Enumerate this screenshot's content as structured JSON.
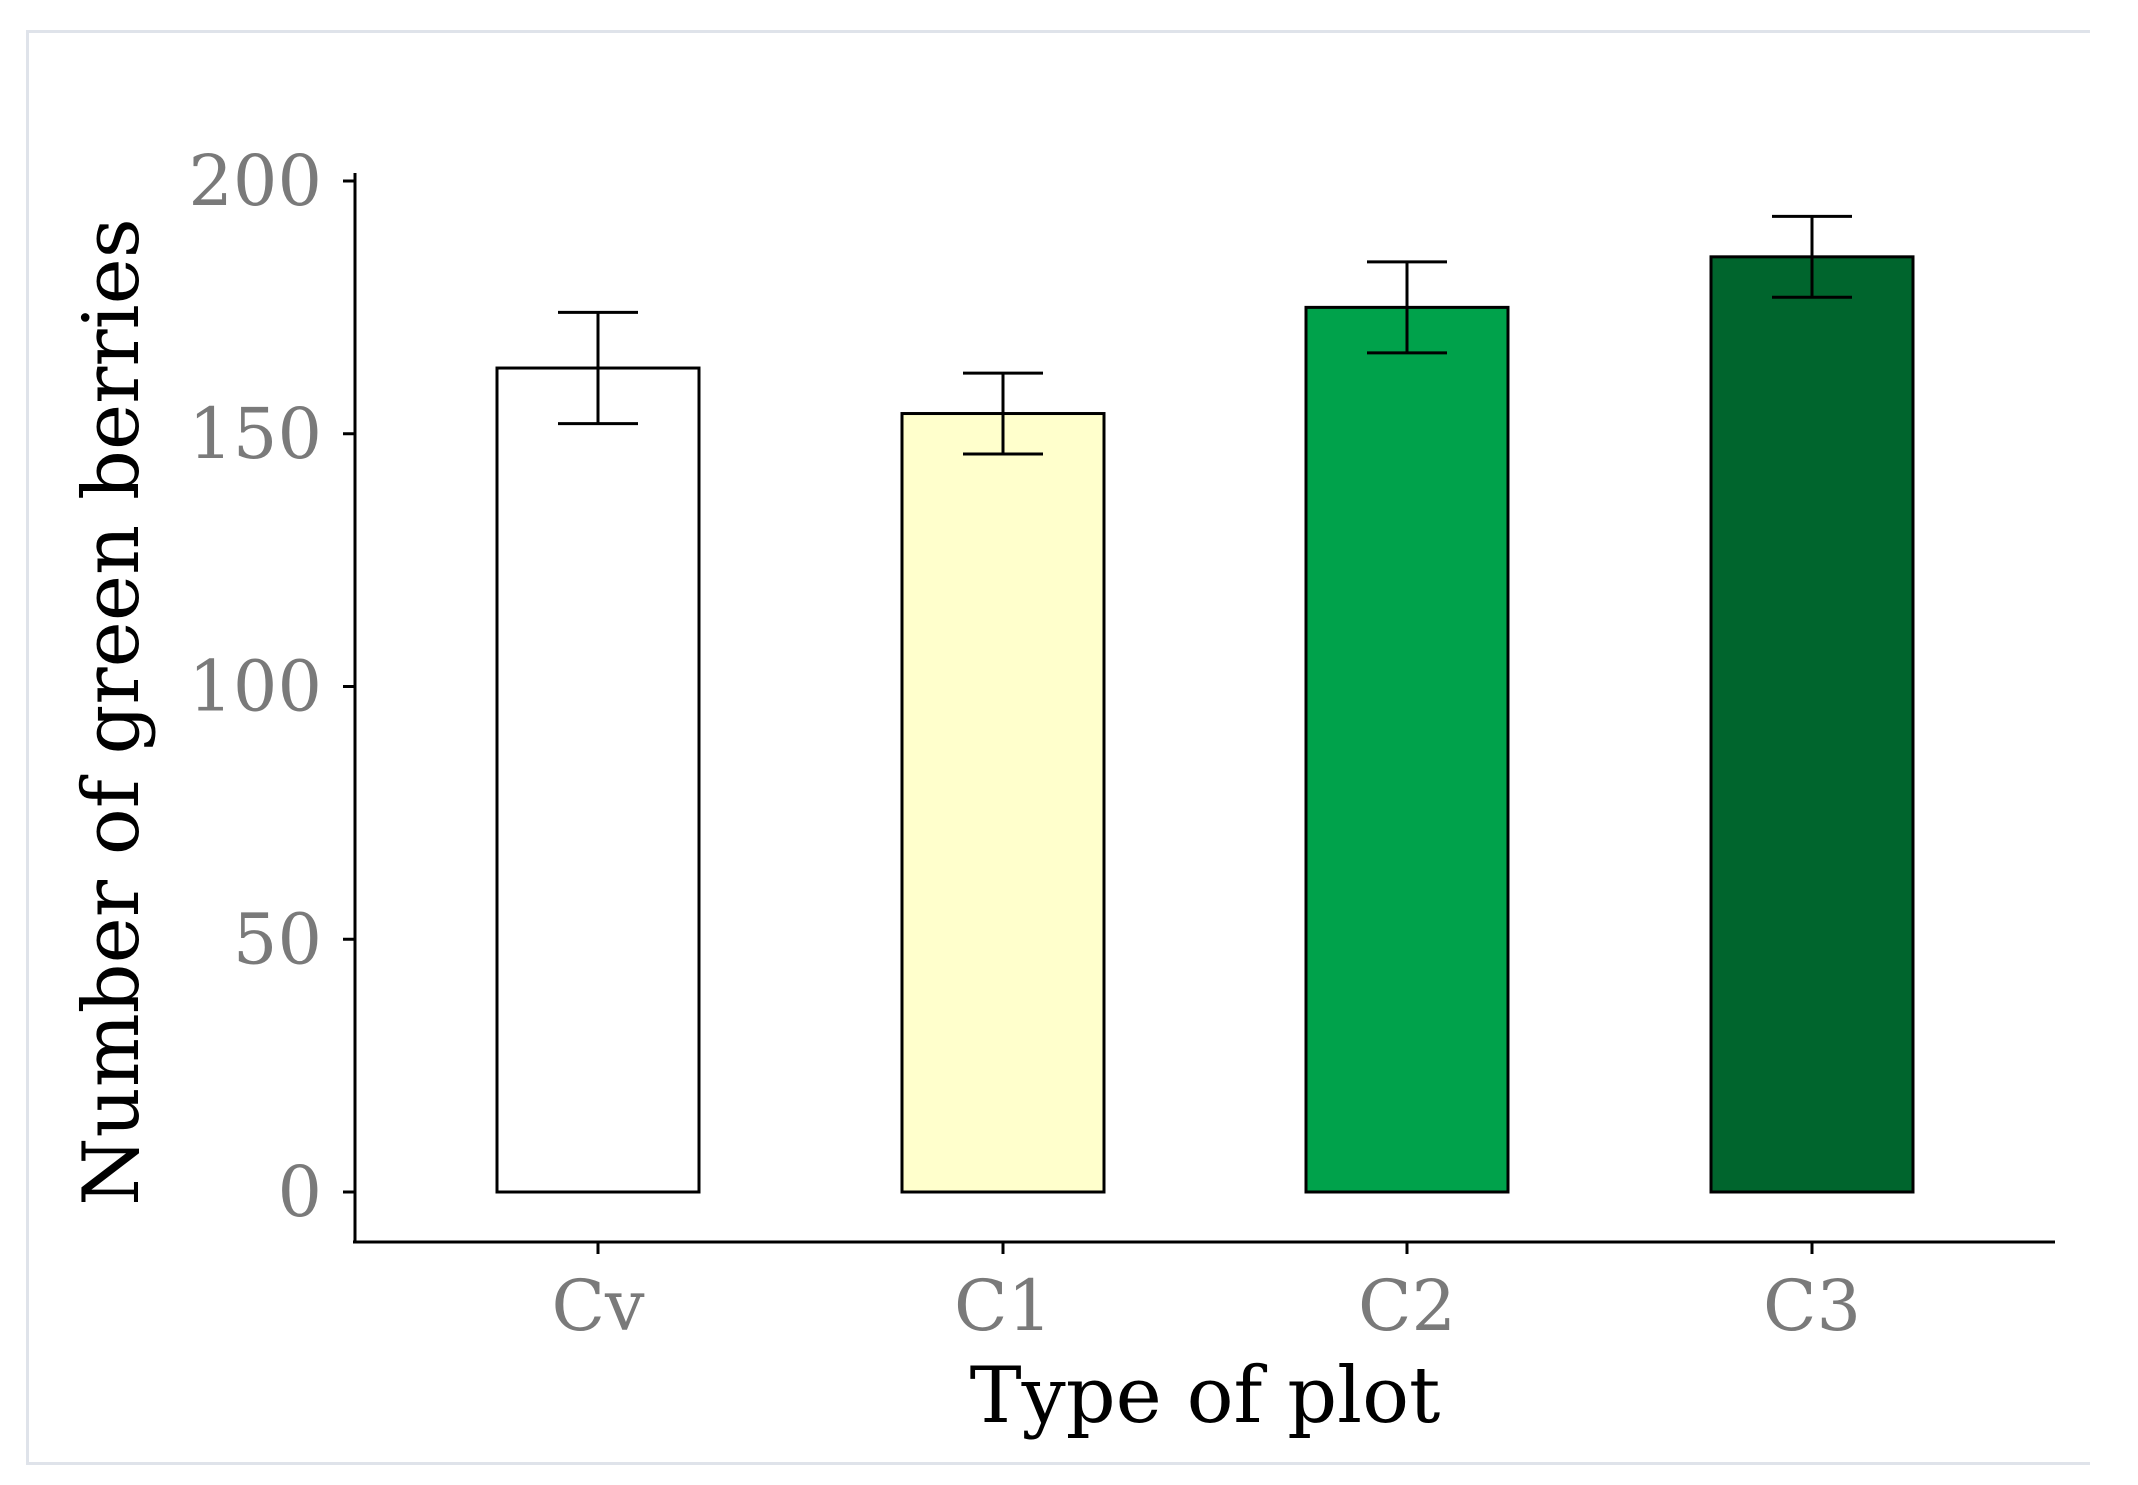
{
  "chart_data": {
    "type": "bar",
    "title": "",
    "xlabel": "Type of plot",
    "ylabel": "Number of green berries",
    "categories": [
      "Cv",
      "C1",
      "C2",
      "C3"
    ],
    "values": [
      163,
      154,
      175,
      185
    ],
    "errors": [
      11,
      8,
      9,
      8
    ],
    "colors": [
      "#ffffff",
      "#ffffcc",
      "#00a24b",
      "#00652d"
    ],
    "ylim": [
      0,
      200
    ],
    "yticks": [
      "0",
      "50",
      "100",
      "150",
      "200"
    ],
    "grid": false,
    "legend": "none"
  }
}
